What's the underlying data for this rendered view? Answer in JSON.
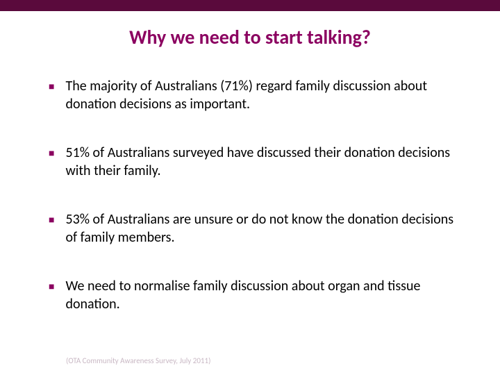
{
  "colors": {
    "top_bar": "#5a0a3c",
    "title_color": "#8b0060",
    "bullet_marker_color": "#8b0060",
    "text_color": "#000000",
    "footer_color": "#c9b8c4",
    "background": "#ffffff"
  },
  "title": "Why we need to start talking?",
  "bullets": [
    "The majority of Australians (71%) regard family discussion about donation decisions as important.",
    "51% of Australians surveyed have discussed their donation decisions with their family.",
    "53% of Australians are unsure or do not know the donation decisions of family members.",
    "We need to normalise family discussion about organ and tissue donation."
  ],
  "footer": "(OTA Community Awareness Survey, July 2011)"
}
